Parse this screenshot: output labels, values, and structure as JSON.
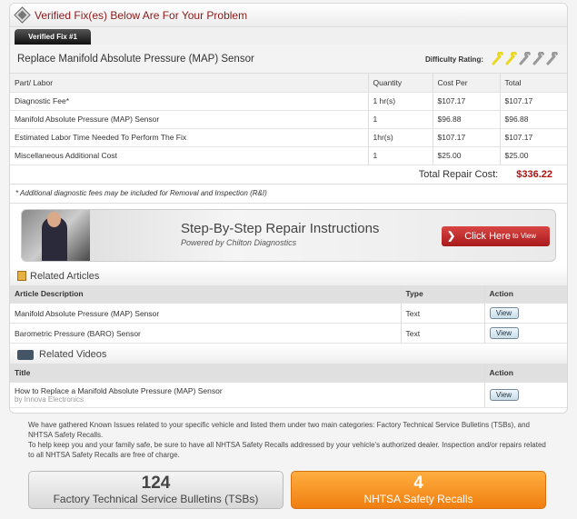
{
  "header": {
    "title": "Verified Fix(es) Below Are For Your Problem"
  },
  "tab": {
    "label": "Verified Fix #1"
  },
  "fix": {
    "title": "Replace Manifold Absolute Pressure (MAP) Sensor",
    "difficulty_label": "Difficulty Rating:",
    "difficulty": 2,
    "difficulty_max": 5
  },
  "parts": {
    "headers": [
      "Part/ Labor",
      "Quantity",
      "Cost Per",
      "Total"
    ],
    "rows": [
      [
        "Diagnostic Fee*",
        "1 hr(s)",
        "$107.17",
        "$107.17"
      ],
      [
        "Manifold Absolute Pressure (MAP) Sensor",
        "1",
        "$96.88",
        "$96.88"
      ],
      [
        "Estimated Labor Time Needed To Perform The Fix",
        "1hr(s)",
        "$107.17",
        "$107.17"
      ],
      [
        "Miscellaneous Additional Cost",
        "1",
        "$25.00",
        "$25.00"
      ]
    ],
    "total_label": "Total Repair Cost:",
    "total_value": "$336.22",
    "note": "* Additional diagnostic fees may be included for Removal and Inspection (R&I)"
  },
  "banner": {
    "title": "Step-By-Step Repair Instructions",
    "subtitle": "Powered by Chilton Diagnostics",
    "button": "Click Here",
    "button_small": "to View"
  },
  "articles": {
    "heading": "Related Articles",
    "headers": [
      "Article Description",
      "Type",
      "Action"
    ],
    "rows": [
      [
        "Manifold Absolute Pressure (MAP) Sensor",
        "Text",
        "View"
      ],
      [
        "Barometric Pressure (BARO) Sensor",
        "Text",
        "View"
      ]
    ]
  },
  "videos": {
    "heading": "Related Videos",
    "headers": [
      "Title",
      "Action"
    ],
    "rows": [
      {
        "title": "How to Replace a Manifold Absolute Pressure (MAP) Sensor",
        "by": "by Innova Electronics",
        "action": "View"
      }
    ]
  },
  "info": {
    "p1": "We have gathered Known Issues related to your specific vehicle and listed them under two main categories: Factory Technical Service Bulletins (TSBs), and NHTSA Safety Recalls.",
    "p2": "To help keep you and your family safe, be sure to have all NHTSA Safety Recalls addressed by your vehicle's authorized dealer. Inspection and/or repairs related to all NHTSA Safety Recalls are free of charge."
  },
  "tsb": {
    "count": "124",
    "label": "Factory Technical Service Bulletins (TSBs)"
  },
  "recalls": {
    "count": "4",
    "label": "NHTSA Safety Recalls"
  },
  "colors": {
    "accent_red": "#b01010",
    "orange": "#f39020"
  }
}
